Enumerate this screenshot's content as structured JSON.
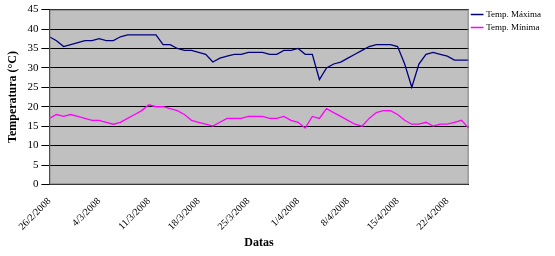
{
  "chart_data": {
    "type": "line",
    "x_label": "Datas",
    "y_label": "Temperatura (°C)",
    "categories": [
      "26/2/2008",
      null,
      null,
      null,
      null,
      null,
      null,
      "4/3/2008",
      null,
      null,
      null,
      null,
      null,
      null,
      "11/3/2008",
      null,
      null,
      null,
      null,
      null,
      null,
      "18/3/2008",
      null,
      null,
      null,
      null,
      null,
      null,
      "25/3/2008",
      null,
      null,
      null,
      null,
      null,
      null,
      "1/4/2008",
      null,
      null,
      null,
      null,
      null,
      null,
      "8/4/2008",
      null,
      null,
      null,
      null,
      null,
      null,
      "15/4/2008",
      null,
      null,
      null,
      null,
      null,
      null,
      "22/4/2008",
      null,
      null,
      null
    ],
    "series": [
      {
        "name": "Temp. Máxima",
        "color": "#000080",
        "values": [
          38,
          37,
          35.5,
          36,
          36.5,
          37,
          37,
          37.5,
          37,
          37,
          38,
          38.5,
          38.5,
          38.5,
          38.5,
          38.5,
          36,
          36,
          35,
          34.5,
          34.5,
          34,
          33.5,
          31.5,
          32.5,
          33,
          33.5,
          33.5,
          34,
          34,
          34,
          33.5,
          33.5,
          34.5,
          34.5,
          35,
          33.5,
          33.5,
          27,
          30,
          31,
          31.5,
          32.5,
          33.5,
          34.5,
          35.5,
          36,
          36,
          36,
          35.5,
          31,
          25,
          31,
          33.5,
          34,
          33.5,
          33,
          32,
          32,
          32
        ]
      },
      {
        "name": "Temp. Mínima",
        "color": "#ff00ff",
        "values": [
          17,
          18,
          17.5,
          18,
          17.5,
          17,
          16.5,
          16.5,
          16,
          15.5,
          16,
          17,
          18,
          19,
          20.5,
          20,
          20,
          19.5,
          19,
          18,
          16.5,
          16,
          15.5,
          15,
          16,
          17,
          17,
          17,
          17.5,
          17.5,
          17.5,
          17,
          17,
          17.5,
          16.5,
          16,
          14.5,
          17.5,
          17,
          19.5,
          18.5,
          17.5,
          16.5,
          15.5,
          15,
          17,
          18.5,
          19,
          19,
          18,
          16.5,
          15.5,
          15.5,
          16,
          15,
          15.5,
          15.5,
          16,
          16.5,
          14.5
        ]
      }
    ],
    "ylim": [
      0,
      45
    ],
    "yticks": [
      0,
      5,
      10,
      15,
      20,
      25,
      30,
      35,
      40,
      45
    ],
    "grid": true,
    "legend": "right"
  }
}
